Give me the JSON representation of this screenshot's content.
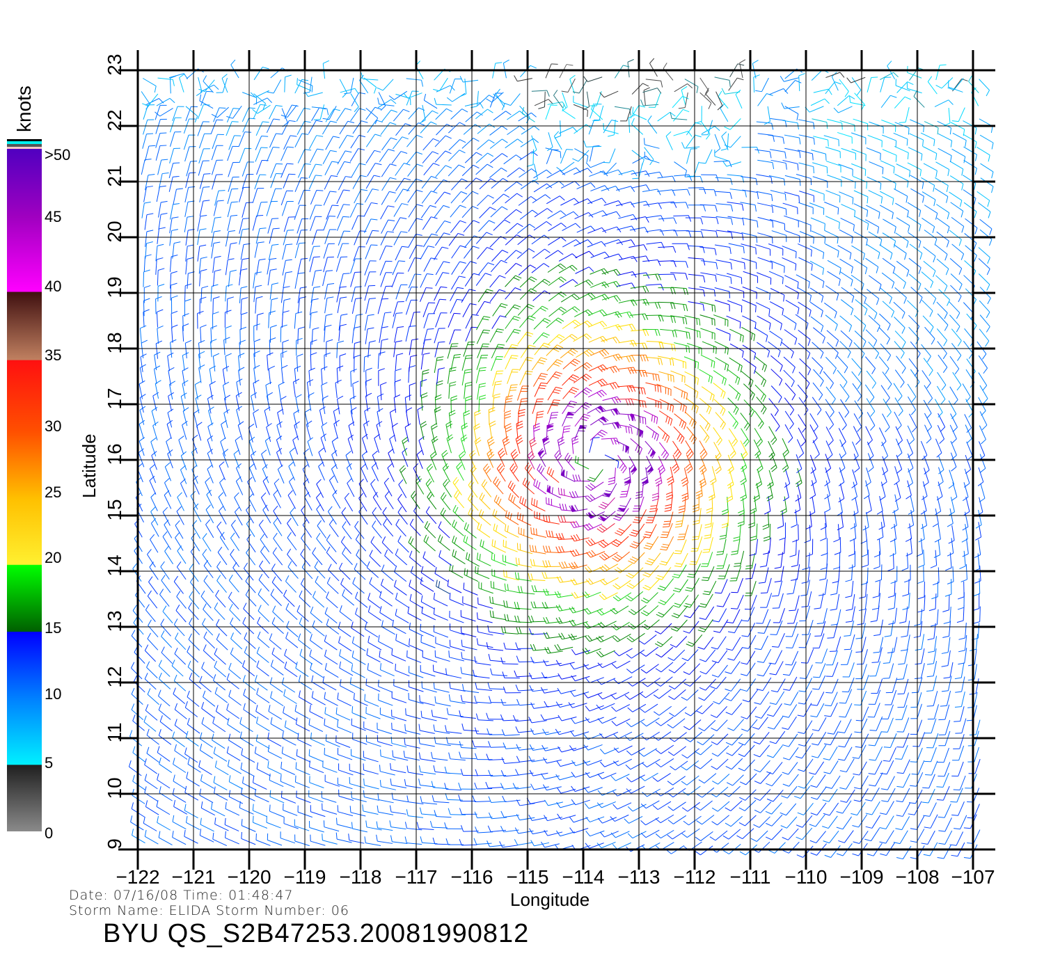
{
  "chart_data": {
    "type": "wind_barbs",
    "title": "BYU QS_S2B47253.20081990812",
    "xlabel": "Longitude",
    "ylabel": "Latitude",
    "xlim": [
      -122,
      -107
    ],
    "ylim": [
      9,
      23
    ],
    "xticks": [
      "-122",
      "-121",
      "-120",
      "-119",
      "-118",
      "-117",
      "-116",
      "-115",
      "-114",
      "-113",
      "-112",
      "-111",
      "-110",
      "-109",
      "-108",
      "-107"
    ],
    "yticks": [
      "9",
      "10",
      "11",
      "12",
      "13",
      "14",
      "15",
      "16",
      "17",
      "18",
      "19",
      "20",
      "21",
      "22",
      "23"
    ],
    "grid": true,
    "storm_center": {
      "lon": -113.75,
      "lat": 16.0
    },
    "max_wind_knots": 50,
    "background_wind_knots": 10,
    "rotation": "counterclockwise",
    "colorbar": {
      "label": "knots",
      "ticks": [
        "0",
        "5",
        "10",
        "15",
        "20",
        "25",
        "30",
        "35",
        "40",
        "45",
        ">50"
      ],
      "colors": {
        "0": "#8a8a8a",
        "5": "#00e8ff",
        "10": "#0060ff",
        "15": "#0010ff",
        "20": "#00ff00",
        "25": "#ffd000",
        "30": "#ff6000",
        "35": "#ff1010",
        "40": "#601010",
        "45": "#d000e0",
        "50": "#5000c0"
      }
    }
  },
  "footer": {
    "date_line": "Date: 07/16/08   Time: 01:48:47",
    "storm_line": "Storm  Name: ELIDA   Storm  Number: 06",
    "product": "BYU  QS_S2B47253.20081990812"
  }
}
